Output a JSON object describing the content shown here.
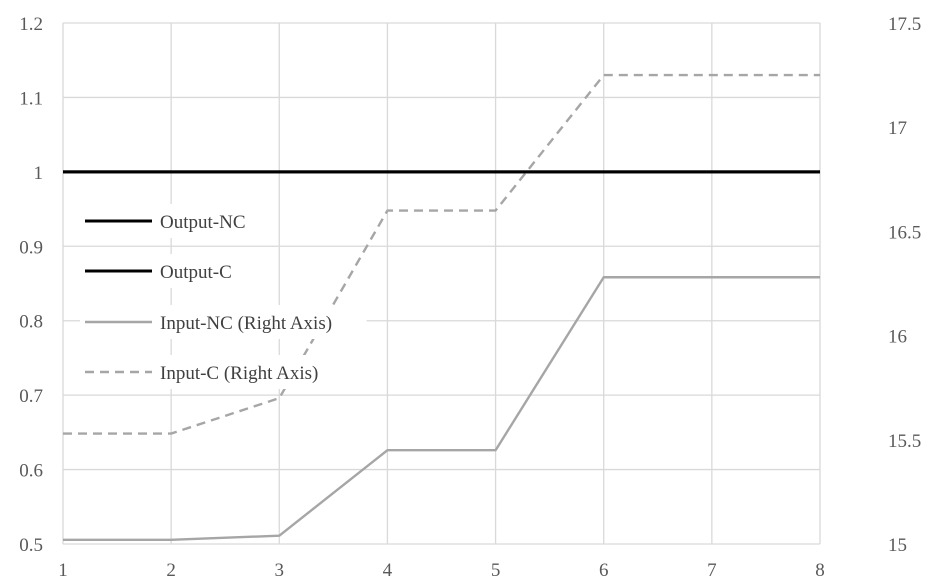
{
  "chart_data": {
    "type": "line",
    "x": [
      1,
      2,
      3,
      4,
      5,
      6,
      7,
      8
    ],
    "xlim": [
      1,
      8
    ],
    "y_left": {
      "ylim": [
        0.5,
        1.2
      ],
      "ticks": [
        "0.5",
        "0.6",
        "0.7",
        "0.8",
        "0.9",
        "1",
        "1.1",
        "1.2"
      ]
    },
    "y_right": {
      "ylim": [
        15,
        17.5
      ],
      "ticks": [
        "15",
        "15.5",
        "16",
        "16.5",
        "17",
        "17.5"
      ]
    },
    "x_ticks": [
      "1",
      "2",
      "3",
      "4",
      "5",
      "6",
      "7",
      "8"
    ],
    "grid": true,
    "legend_position": "left-center",
    "series": [
      {
        "name": "Output-NC",
        "axis": "left",
        "color": "#000000",
        "dash": "solid",
        "values": [
          1,
          1,
          1,
          1,
          1,
          1,
          1,
          1
        ]
      },
      {
        "name": "Output-C",
        "axis": "left",
        "color": "#000000",
        "dash": "solid",
        "values": [
          1,
          1,
          1,
          1,
          1,
          1,
          1,
          1
        ]
      },
      {
        "name": "Input-NC (Right Axis)",
        "axis": "right",
        "color": "#a6a6a6",
        "dash": "solid",
        "values": [
          15.02,
          15.02,
          15.04,
          15.45,
          15.45,
          16.28,
          16.28,
          16.28
        ]
      },
      {
        "name": "Input-C (Right Axis)",
        "axis": "right",
        "color": "#a6a6a6",
        "dash": "dashed",
        "values": [
          15.53,
          15.53,
          15.7,
          16.6,
          16.6,
          17.25,
          17.25,
          17.25
        ]
      }
    ]
  }
}
